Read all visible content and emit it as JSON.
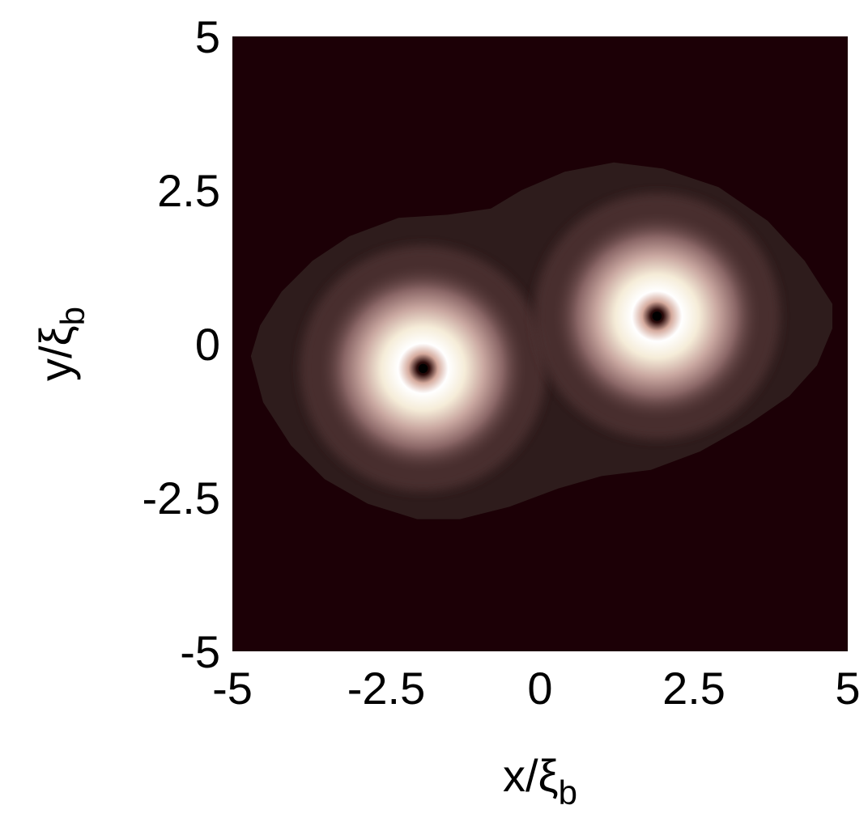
{
  "chart_data": {
    "type": "heatmap",
    "title": "",
    "xlabel": {
      "main": "x/ξ",
      "sub": "b"
    },
    "ylabel": {
      "main": "y/ξ",
      "sub": "b"
    },
    "xlim": [
      -5,
      5
    ],
    "ylim": [
      -5,
      5
    ],
    "xticks": [
      {
        "value": -5,
        "label": "-5"
      },
      {
        "value": -2.5,
        "label": "-2.5"
      },
      {
        "value": 0,
        "label": "0"
      },
      {
        "value": 2.5,
        "label": "2.5"
      },
      {
        "value": 5,
        "label": "5"
      }
    ],
    "yticks": [
      {
        "value": 5,
        "label": "5"
      },
      {
        "value": 2.5,
        "label": "2.5"
      },
      {
        "value": 0,
        "label": "0"
      },
      {
        "value": -2.5,
        "label": "-2.5"
      },
      {
        "value": -5,
        "label": "-5"
      }
    ],
    "grid": false,
    "colormap": [
      "#1c0006",
      "#2e1c1c",
      "#4d3232",
      "#8a6666",
      "#c9a7a0",
      "#f5ecd8",
      "#ffffff"
    ],
    "background_color": "#1c0006",
    "vortices": [
      {
        "x": -1.9,
        "y": -0.4,
        "ring_radius": 0.55,
        "core_radius": 0.1
      },
      {
        "x": 1.9,
        "y": 0.45,
        "ring_radius": 0.55,
        "core_radius": 0.1
      }
    ],
    "cloud_outline": [
      [
        -4.7,
        -0.2
      ],
      [
        -4.55,
        0.3
      ],
      [
        -4.2,
        0.85
      ],
      [
        -3.7,
        1.35
      ],
      [
        -3.1,
        1.75
      ],
      [
        -2.3,
        2.05
      ],
      [
        -1.5,
        2.1
      ],
      [
        -0.8,
        2.2
      ],
      [
        -0.3,
        2.5
      ],
      [
        0.4,
        2.8
      ],
      [
        1.2,
        2.95
      ],
      [
        2.0,
        2.85
      ],
      [
        2.9,
        2.55
      ],
      [
        3.7,
        2.0
      ],
      [
        4.3,
        1.35
      ],
      [
        4.75,
        0.65
      ],
      [
        4.75,
        0.25
      ],
      [
        4.5,
        -0.35
      ],
      [
        4.05,
        -0.85
      ],
      [
        3.4,
        -1.3
      ],
      [
        2.6,
        -1.75
      ],
      [
        1.8,
        -2.05
      ],
      [
        1.0,
        -2.15
      ],
      [
        0.3,
        -2.35
      ],
      [
        -0.5,
        -2.65
      ],
      [
        -1.3,
        -2.85
      ],
      [
        -2.0,
        -2.85
      ],
      [
        -2.8,
        -2.6
      ],
      [
        -3.5,
        -2.2
      ],
      [
        -4.05,
        -1.65
      ],
      [
        -4.5,
        -0.95
      ]
    ]
  }
}
